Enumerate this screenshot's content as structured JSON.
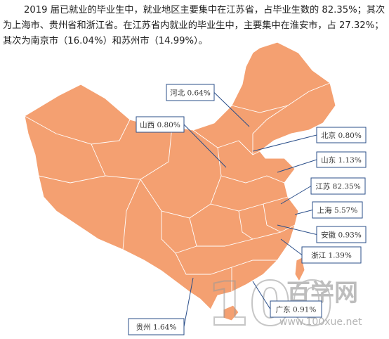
{
  "paragraph": "2019 届已就业的毕业生中，就业地区主要集中在江苏省，占毕业生数的 82.35%；其次为上海市、贵州省和浙江省。在江苏省内就业的毕业生中，主要集中在淮安市，占 27.32%；其次为南京市（16.04%）和苏州市（14.99%）。",
  "map": {
    "labels": [
      "河北 0.64%",
      "山西 0.80%",
      "北京 0.80%",
      "山东 1.13%",
      "江苏 82.35%",
      "上海 5.57%",
      "安徽 0.93%",
      "浙江 1.39%",
      "广东 0.91%",
      "贵州 1.64%"
    ]
  },
  "watermark": {
    "logo": "100",
    "name": "百学网",
    "url": "www.100xue.net"
  }
}
